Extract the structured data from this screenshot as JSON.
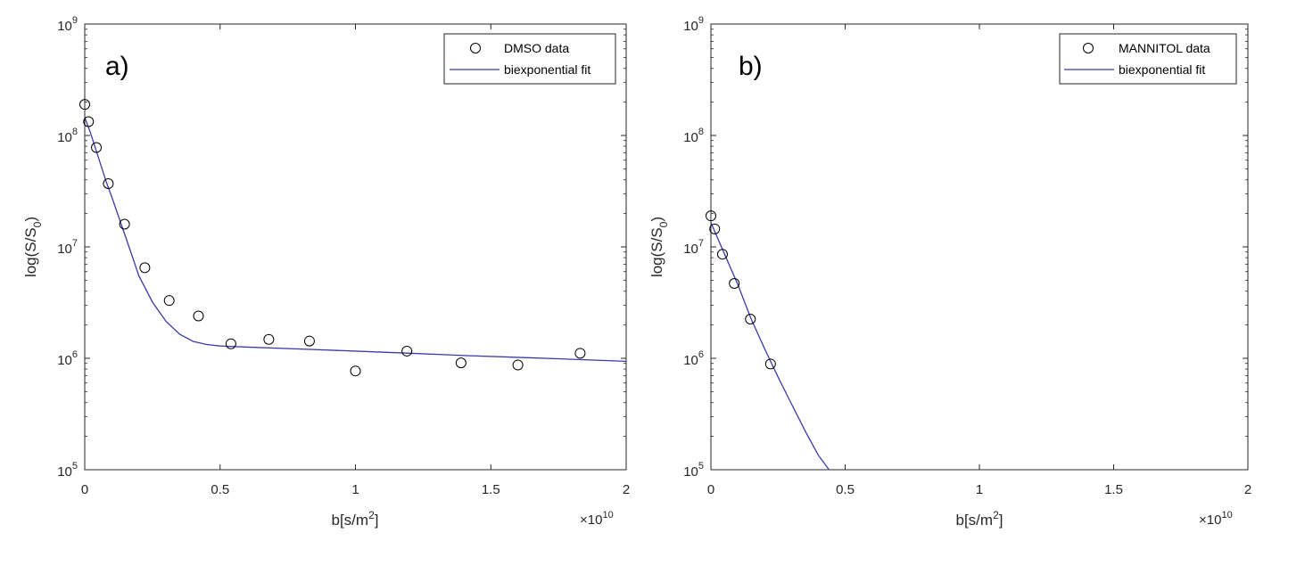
{
  "chart_data": [
    {
      "type": "scatter",
      "panel_label": "a)",
      "xlabel": "b[s/m",
      "xlabel_superscript": "2",
      "xlabel_close": "]",
      "ylabel": "log(S/S",
      "ylabel_subscript": "0",
      "ylabel_close": ")",
      "x_exponent_label": "×10",
      "x_exponent": "10",
      "x_scale": 10000000000.0,
      "xlim": [
        0,
        2
      ],
      "xticks": [
        "0",
        "0.5",
        "1",
        "1.5",
        "2"
      ],
      "y_scale": "log",
      "ylim_exp": [
        5,
        9
      ],
      "ytick_base": "10",
      "yticks_exp": [
        "5",
        "6",
        "7",
        "8",
        "9"
      ],
      "legend_position": "top-right",
      "series": [
        {
          "name": "DMSO data",
          "style": "open-circle",
          "color": "#000000",
          "x": [
            0.0,
            0.014,
            0.043,
            0.087,
            0.147,
            0.222,
            0.312,
            0.42,
            0.54,
            0.68,
            0.83,
            1.0,
            1.19,
            1.39,
            1.6,
            1.83
          ],
          "y": [
            190000000,
            133000000,
            78000000,
            37000000,
            16000000,
            6500000,
            3300000,
            2400000,
            1350000,
            1480000,
            1430000,
            770000,
            1160000,
            910000,
            870000,
            1110000
          ]
        },
        {
          "name": "biexponential fit",
          "style": "line",
          "color": "#3a3aa8",
          "x": [
            0.0,
            0.02,
            0.05,
            0.08,
            0.1,
            0.15,
            0.2,
            0.25,
            0.3,
            0.35,
            0.4,
            0.45,
            0.5,
            0.6,
            0.8,
            1.0,
            1.2,
            1.4,
            1.6,
            1.8,
            2.0
          ],
          "y": [
            145000000,
            108000000,
            64000000,
            38000000,
            28000000,
            12500000,
            5500000,
            3200000,
            2150000,
            1650000,
            1420000,
            1330000,
            1290000,
            1260000,
            1210000,
            1160000,
            1110000,
            1060000,
            1020000,
            980000,
            940000
          ]
        }
      ]
    },
    {
      "type": "scatter",
      "panel_label": "b)",
      "xlabel": "b[s/m",
      "xlabel_superscript": "2",
      "xlabel_close": "]",
      "ylabel": "log(S/S",
      "ylabel_subscript": "0",
      "ylabel_close": ")",
      "x_exponent_label": "×10",
      "x_exponent": "10",
      "x_scale": 10000000000.0,
      "xlim": [
        0,
        2
      ],
      "xticks": [
        "0",
        "0.5",
        "1",
        "1.5",
        "2"
      ],
      "y_scale": "log",
      "ylim_exp": [
        5,
        9
      ],
      "ytick_base": "10",
      "yticks_exp": [
        "5",
        "6",
        "7",
        "8",
        "9"
      ],
      "legend_position": "top-right",
      "series": [
        {
          "name": "MANNITOL data",
          "style": "open-circle",
          "color": "#000000",
          "x": [
            0.0,
            0.014,
            0.043,
            0.087,
            0.147,
            0.222
          ],
          "y": [
            19000000,
            14500000,
            8600000,
            4700000,
            2250000,
            890000
          ]
        },
        {
          "name": "biexponential fit",
          "style": "line",
          "color": "#3a3aa8",
          "x": [
            0.0,
            0.05,
            0.1,
            0.15,
            0.2,
            0.25,
            0.3,
            0.35,
            0.4,
            0.44
          ],
          "y": [
            16500000,
            8700000,
            4600000,
            2250000,
            1220000,
            680000,
            390000,
            225000,
            135000,
            100000
          ]
        }
      ]
    }
  ]
}
